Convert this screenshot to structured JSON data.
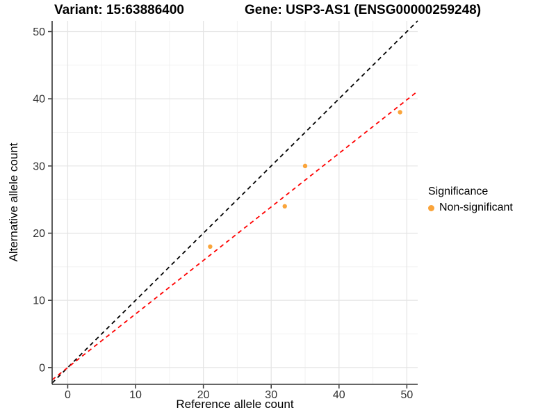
{
  "chart_data": {
    "type": "scatter",
    "title_left": "Variant: 15:63886400",
    "title_right": "Gene: USP3-AS1 (ENSG00000259248)",
    "xlabel": "Reference allele count",
    "ylabel": "Alternative allele count",
    "xlim": [
      -2.3,
      51.6
    ],
    "ylim": [
      -2.5,
      51.6
    ],
    "x_ticks": [
      0,
      10,
      20,
      30,
      40,
      50
    ],
    "y_ticks": [
      0,
      10,
      20,
      30,
      40,
      50
    ],
    "x_minor_ticks": [
      5,
      15,
      25,
      35,
      45
    ],
    "y_minor_ticks": [
      5,
      15,
      25,
      35,
      45
    ],
    "grid": "major+minor",
    "points": [
      {
        "x": 21,
        "y": 18,
        "series": "Non-significant"
      },
      {
        "x": 32,
        "y": 24,
        "series": "Non-significant"
      },
      {
        "x": 35,
        "y": 30,
        "series": "Non-significant"
      },
      {
        "x": 49,
        "y": 38,
        "series": "Non-significant"
      }
    ],
    "lines": [
      {
        "name": "identity-line",
        "slope": 1,
        "intercept": 0,
        "color": "#000000",
        "style": "dashed"
      },
      {
        "name": "fit-line",
        "slope": 0.797,
        "intercept": 0,
        "color": "#FF0000",
        "style": "dashed"
      }
    ],
    "legend": {
      "title": "Significance",
      "entries": [
        {
          "label": "Non-significant",
          "color": "#FAA43A"
        }
      ]
    },
    "colors": {
      "point": "#FAA43A",
      "grid_major": "#E4E4E4",
      "grid_minor": "#F2F2F2",
      "axis": "#333333",
      "tick_text": "#303030"
    }
  }
}
